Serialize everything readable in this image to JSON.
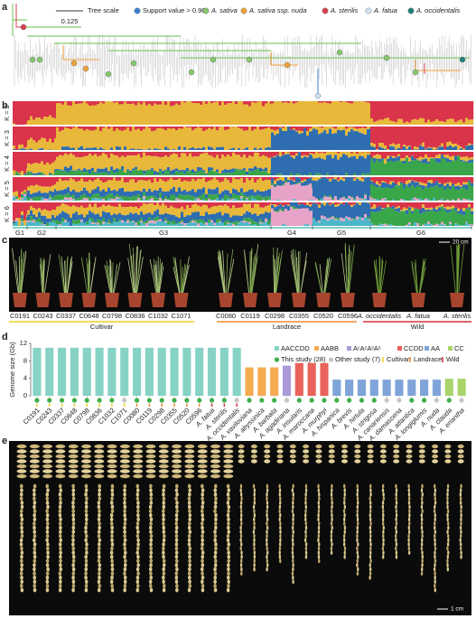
{
  "panel_a": {
    "label": "a",
    "tree_scale_label": "Tree scale",
    "tree_scale_value": "0.125",
    "legend": [
      {
        "label": "Support value > 0.90",
        "color": "#3b7fd0"
      },
      {
        "label": "A. sativa",
        "color": "#86c96e"
      },
      {
        "label": "A. sativa ssp. nuda",
        "color": "#f2a23c"
      },
      {
        "label": "A. sterilis",
        "color": "#d94050"
      },
      {
        "label": "A. fatua",
        "color": "#cfe3f5"
      },
      {
        "label": "A. occidentalis",
        "color": "#1f7f7a"
      }
    ]
  },
  "panel_b": {
    "label": "b",
    "rows": [
      "K = 2",
      "K = 3",
      "K = 4",
      "K = 5",
      "K = 6"
    ],
    "groups": [
      "G1",
      "G2",
      "G3",
      "G4",
      "G5",
      "G6"
    ]
  },
  "panel_c": {
    "label": "c",
    "scale": "20 cm",
    "plants": [
      "C0191",
      "C0243",
      "C0337",
      "C0648",
      "C0798",
      "C0836",
      "C1032",
      "C1071",
      "C0080",
      "C0119",
      "C0298",
      "C0355",
      "C0520",
      "C0596",
      "A. occidentalis",
      "A. fatua",
      "A. sterilis"
    ],
    "groups": [
      {
        "label": "Cultivar",
        "color": "#f0d020"
      },
      {
        "label": "Landrace",
        "color": "#f08a30"
      },
      {
        "label": "Wild",
        "color": "#d03040"
      }
    ]
  },
  "chart_data": {
    "type": "bar",
    "label": "d",
    "y_label": "Genome size (Gb)",
    "categories": [
      "C0191",
      "C0243",
      "C0337",
      "C0648",
      "C0798",
      "C0836",
      "C1032",
      "C1071",
      "C0080",
      "C0119",
      "C0298",
      "C0355",
      "C0520",
      "C0596",
      "A. fatua",
      "A. sterilis",
      "A. occidentalis",
      "A. vaviloviana",
      "A. abyssinica",
      "A. barbata",
      "A. agadiriana",
      "A. insularis",
      "A. maroccana",
      "A. murphyi",
      "A. hispanica",
      "A. brevis",
      "A. hirtula",
      "A. strigosa",
      "A. canariensis",
      "A. damascena",
      "A. atlantica",
      "A. longiglumis",
      "A. nuda",
      "A. clauda",
      "A. eriantha"
    ],
    "series": [
      {
        "name": "AACCDD",
        "color": "#86d3c5",
        "values": [
          11,
          11,
          11,
          11,
          11,
          11,
          11,
          11,
          11,
          11,
          11,
          11,
          11,
          11,
          11,
          11,
          11,
          null,
          null,
          null,
          null,
          null,
          null,
          null,
          null,
          null,
          null,
          null,
          null,
          null,
          null,
          null,
          null,
          null,
          null
        ]
      },
      {
        "name": "AABB",
        "color": "#f5ab50",
        "values": [
          null,
          null,
          null,
          null,
          null,
          null,
          null,
          null,
          null,
          null,
          null,
          null,
          null,
          null,
          null,
          null,
          null,
          6.5,
          6.5,
          6.5,
          null,
          null,
          null,
          null,
          null,
          null,
          null,
          null,
          null,
          null,
          null,
          null,
          null,
          null,
          null
        ]
      },
      {
        "name": "AᶜAᶜAˢAˢ",
        "color": "#aa9bd8",
        "values": [
          null,
          null,
          null,
          null,
          null,
          null,
          null,
          null,
          null,
          null,
          null,
          null,
          null,
          null,
          null,
          null,
          null,
          null,
          null,
          null,
          6.9,
          null,
          null,
          null,
          null,
          null,
          null,
          null,
          null,
          null,
          null,
          null,
          null,
          null,
          null
        ]
      },
      {
        "name": "CCDD",
        "color": "#ea625a",
        "values": [
          null,
          null,
          null,
          null,
          null,
          null,
          null,
          null,
          null,
          null,
          null,
          null,
          null,
          null,
          null,
          null,
          null,
          null,
          null,
          null,
          null,
          7.5,
          7.5,
          7.5,
          null,
          null,
          null,
          null,
          null,
          null,
          null,
          null,
          null,
          null,
          null
        ]
      },
      {
        "name": "AA",
        "color": "#7fa4da",
        "values": [
          null,
          null,
          null,
          null,
          null,
          null,
          null,
          null,
          null,
          null,
          null,
          null,
          null,
          null,
          null,
          null,
          null,
          null,
          null,
          null,
          null,
          null,
          null,
          null,
          3.7,
          3.7,
          3.7,
          3.7,
          3.7,
          3.7,
          3.7,
          3.7,
          3.7,
          null,
          null
        ]
      },
      {
        "name": "CC",
        "color": "#a9d46a",
        "values": [
          null,
          null,
          null,
          null,
          null,
          null,
          null,
          null,
          null,
          null,
          null,
          null,
          null,
          null,
          null,
          null,
          null,
          null,
          null,
          null,
          null,
          null,
          null,
          null,
          null,
          null,
          null,
          null,
          null,
          null,
          null,
          null,
          null,
          3.9,
          3.9
        ]
      }
    ],
    "ylim": [
      0,
      12
    ],
    "yticks": [
      0,
      4,
      8,
      12
    ],
    "study_legend": [
      {
        "label": "This study (28)",
        "color": "#3fae49"
      },
      {
        "label": "Other study (7)",
        "color": "#c6c6c6"
      }
    ],
    "marker_colors": [
      "#3fae49",
      "#3fae49",
      "#3fae49",
      "#3fae49",
      "#3fae49",
      "#3fae49",
      "#3fae49",
      "#c6c6c6",
      "#3fae49",
      "#3fae49",
      "#3fae49",
      "#3fae49",
      "#3fae49",
      "#3fae49",
      "#3fae49",
      "#3fae49",
      "#c6c6c6",
      "#3fae49",
      "#3fae49",
      "#3fae49",
      "#c6c6c6",
      "#3fae49",
      "#3fae49",
      "#3fae49",
      "#3fae49",
      "#3fae49",
      "#3fae49",
      "#3fae49",
      "#c6c6c6",
      "#c6c6c6",
      "#3fae49",
      "#3fae49",
      "#c6c6c6",
      "#3fae49",
      "#c6c6c6"
    ],
    "group_legend": [
      {
        "label": "Cultivar",
        "color": "#f0d020"
      },
      {
        "label": "Landrace",
        "color": "#f08a30"
      },
      {
        "label": "Wild",
        "color": "#d03040"
      }
    ],
    "group_tick_colors": [
      "#f0d020",
      "#f0d020",
      "#f0d020",
      "#f0d020",
      "#f0d020",
      "#f0d020",
      "#f0d020",
      "#f0d020",
      "#f08a30",
      "#f08a30",
      "#f08a30",
      "#f08a30",
      "#f08a30",
      "#f08a30",
      "#d03040",
      "#d03040",
      "#d03040",
      null,
      null,
      null,
      null,
      null,
      null,
      null,
      null,
      null,
      null,
      null,
      null,
      null,
      null,
      null,
      null,
      null,
      null
    ]
  },
  "panel_e": {
    "label": "e",
    "scale": "1 cm"
  }
}
